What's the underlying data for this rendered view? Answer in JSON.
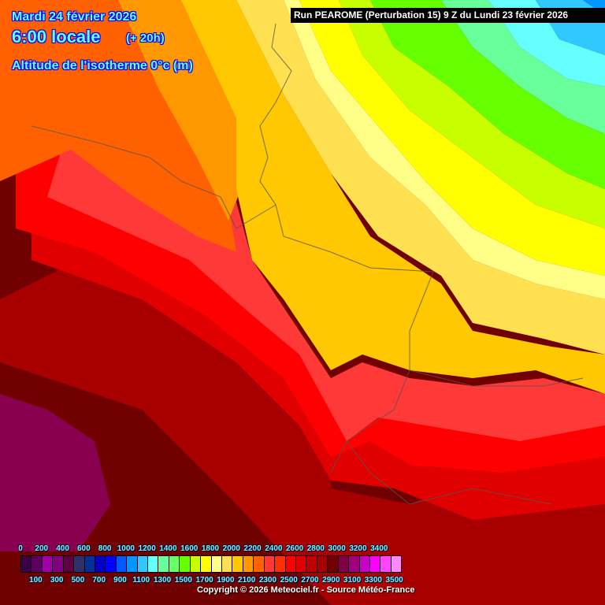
{
  "header": {
    "date": "Mardi 24 février 2026",
    "time": "6:00 locale",
    "lead": "(+ 20h)",
    "parameter": "Altitude de l'isotherme 0°c (m)",
    "run": "Run PEAROME (Perturbation 15) 9 Z du Lundi 23 février 2026"
  },
  "legend": {
    "top_labels": [
      "0",
      "200",
      "400",
      "600",
      "800",
      "1000",
      "1200",
      "1400",
      "1600",
      "1800",
      "2000",
      "2200",
      "2400",
      "2600",
      "2800",
      "3000",
      "3200",
      "3400"
    ],
    "bottom_labels": [
      "100",
      "300",
      "500",
      "700",
      "900",
      "1100",
      "1300",
      "1500",
      "1700",
      "1900",
      "2100",
      "2300",
      "2500",
      "2700",
      "2900",
      "3100",
      "3300",
      "3500"
    ],
    "colors": [
      "#3a0048",
      "#5c0060",
      "#a000a8",
      "#800080",
      "#600040",
      "#303068",
      "#003098",
      "#0000c8",
      "#0000ff",
      "#0058ff",
      "#0098ff",
      "#30c8ff",
      "#66ffff",
      "#66ff99",
      "#66ff66",
      "#66ff00",
      "#c8ff00",
      "#ffff00",
      "#ffff88",
      "#ffe050",
      "#ffc800",
      "#ff9800",
      "#ff6000",
      "#ff3838",
      "#ff3000",
      "#ff0000",
      "#e00000",
      "#c00000",
      "#a80000",
      "#700000",
      "#800048",
      "#a00080",
      "#c800c8",
      "#ff00ff",
      "#ff44ff",
      "#ff88ff"
    ]
  },
  "copyright": "Copyright © 2026 Meteociel.fr - Source Météo-France"
}
